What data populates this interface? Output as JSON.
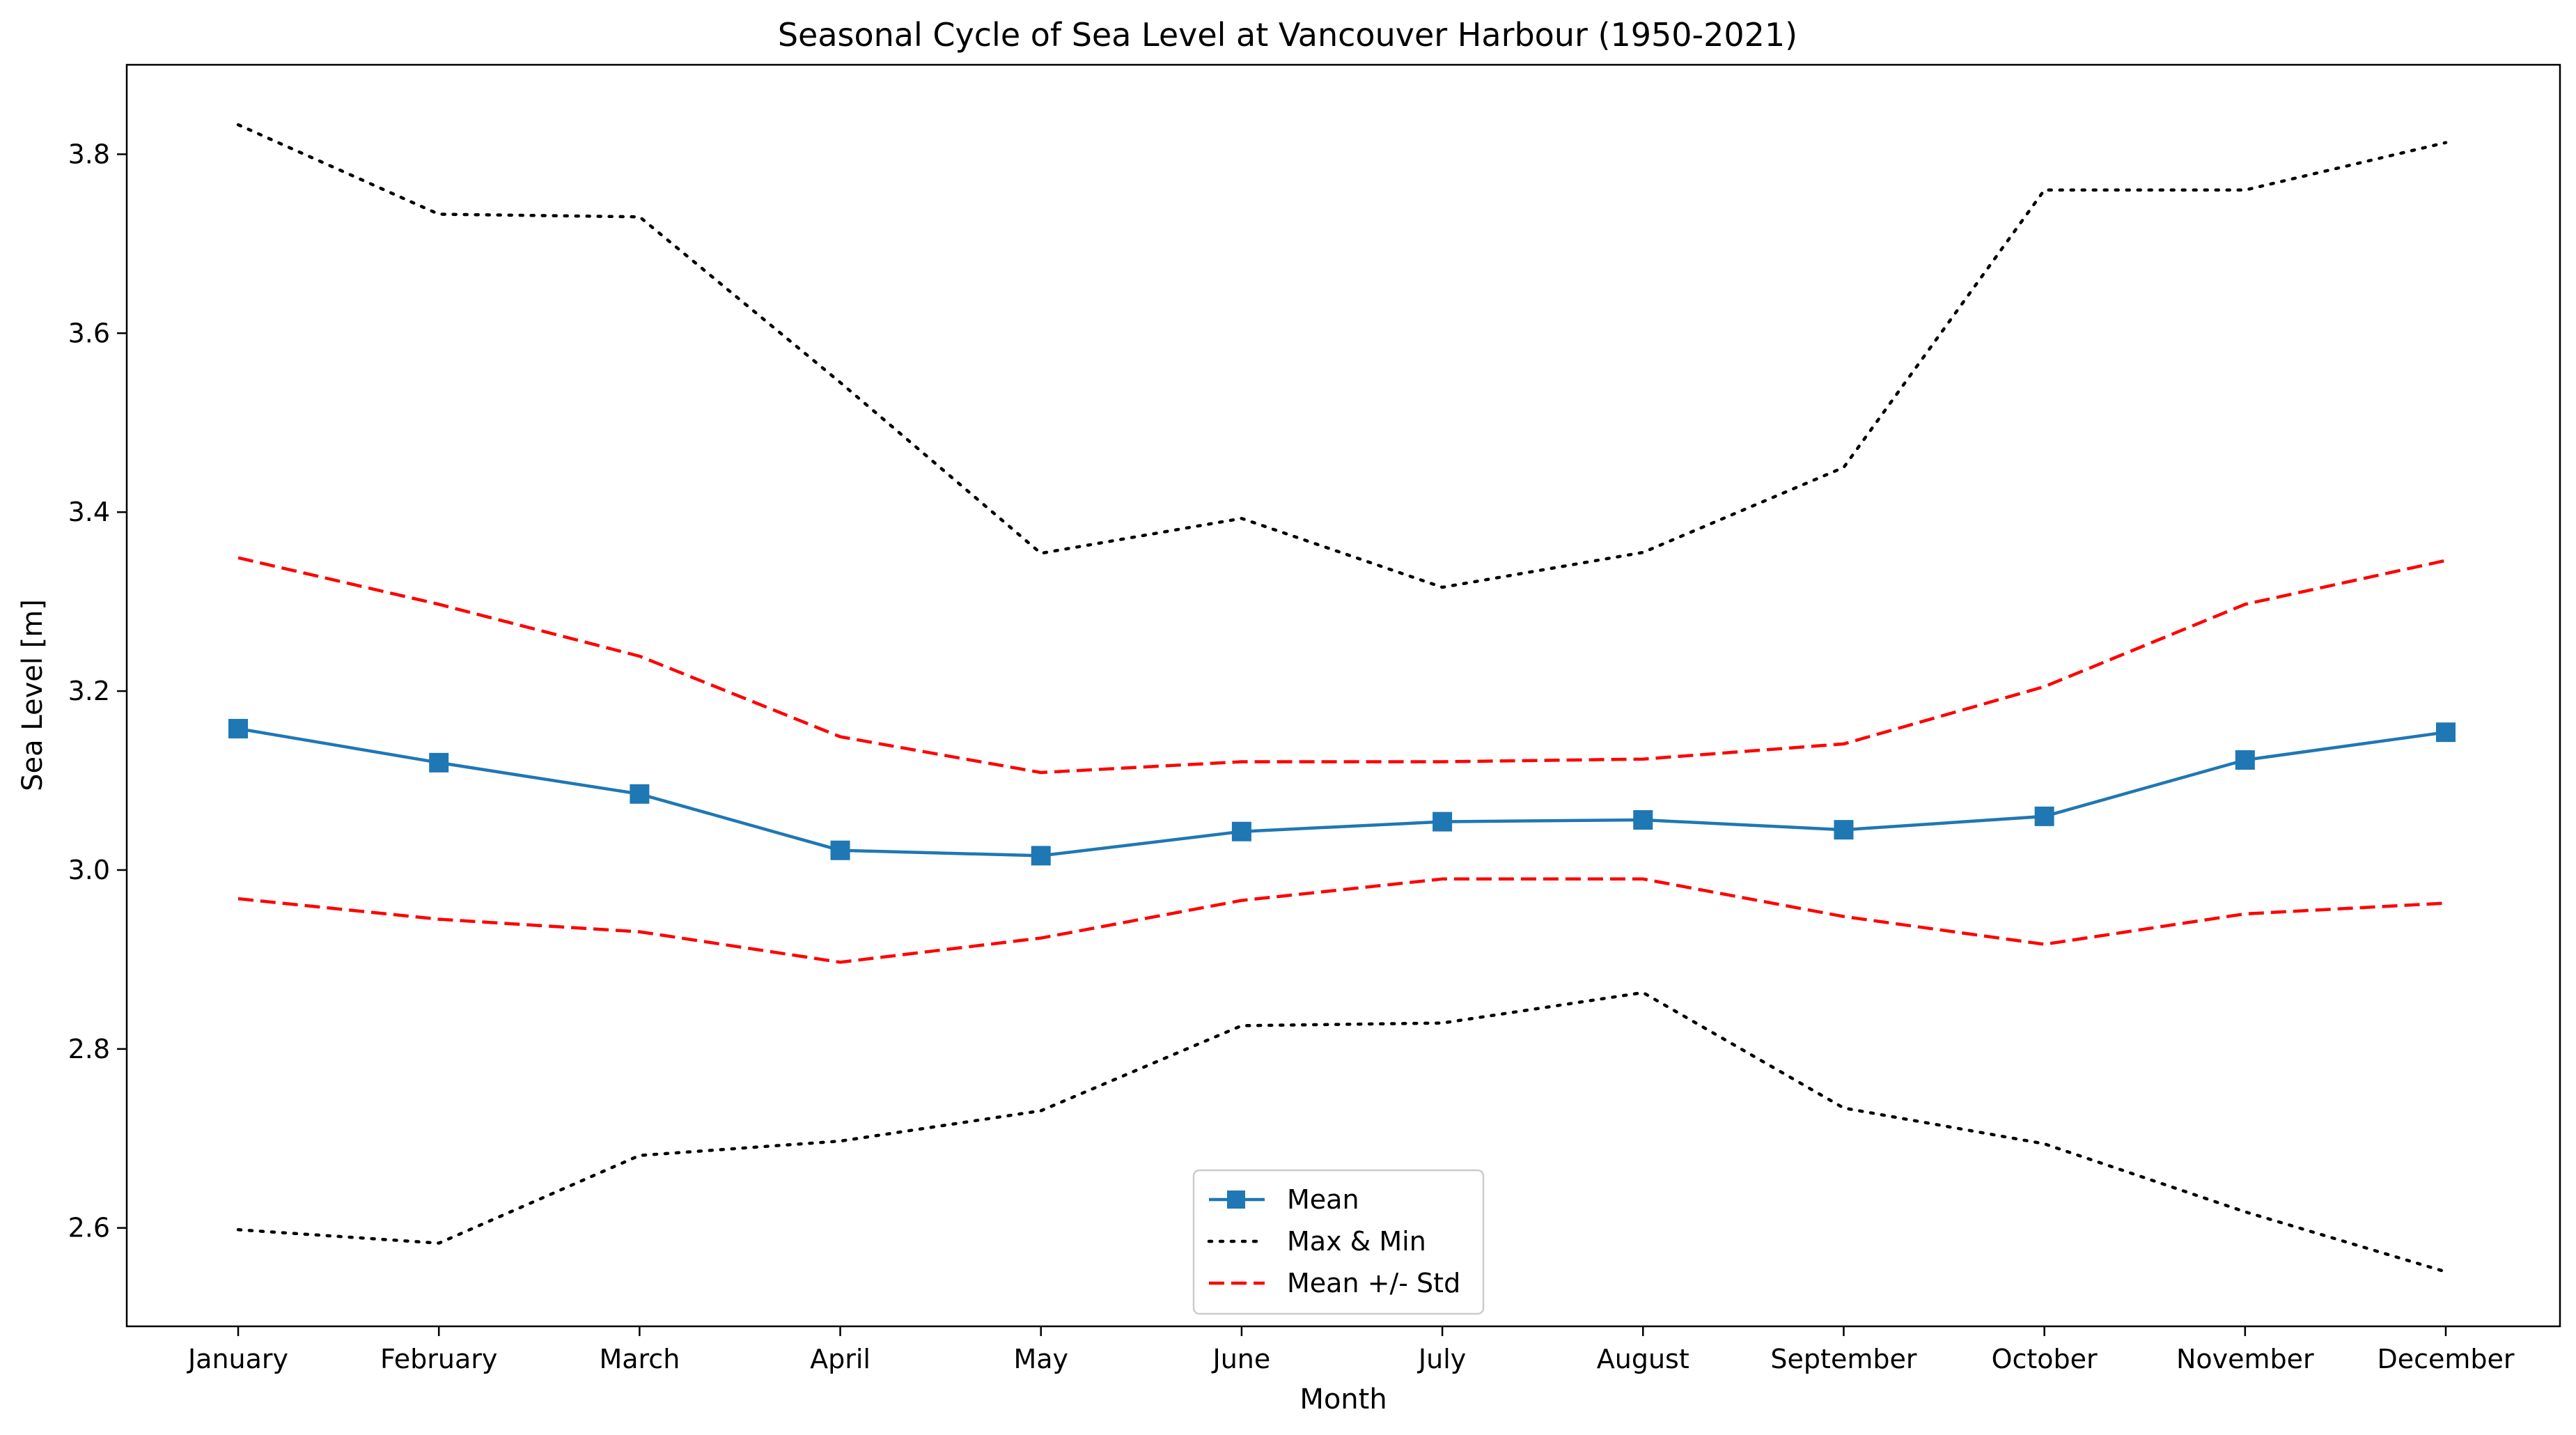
{
  "chart_data": {
    "type": "line",
    "title": "Seasonal Cycle of Sea Level at Vancouver Harbour (1950-2021)",
    "xlabel": "Month",
    "ylabel": "Sea Level [m]",
    "ylim": [
      2.49,
      3.9
    ],
    "yticks": [
      "2.6",
      "2.8",
      "3.0",
      "3.2",
      "3.4",
      "3.6",
      "3.8"
    ],
    "grid": false,
    "legend_position": "bottom-center",
    "categories": [
      "January",
      "February",
      "March",
      "April",
      "May",
      "June",
      "July",
      "August",
      "September",
      "October",
      "November",
      "December"
    ],
    "series": [
      {
        "name": "Mean",
        "legend_label": "Mean",
        "color": "#1f77b4",
        "style": "solid",
        "marker": "square",
        "values": [
          3.158,
          3.12,
          3.085,
          3.022,
          3.016,
          3.043,
          3.054,
          3.056,
          3.045,
          3.06,
          3.123,
          3.154
        ]
      },
      {
        "name": "Max",
        "legend_label": "Max & Min",
        "color": "#000000",
        "style": "dotted",
        "marker": "none",
        "values": [
          3.833,
          3.733,
          3.73,
          3.545,
          3.354,
          3.393,
          3.316,
          3.355,
          3.45,
          3.76,
          3.76,
          3.813
        ]
      },
      {
        "name": "Min",
        "legend_label": "",
        "color": "#000000",
        "style": "dotted",
        "marker": "none",
        "values": [
          2.598,
          2.583,
          2.681,
          2.697,
          2.731,
          2.826,
          2.829,
          2.863,
          2.734,
          2.694,
          2.618,
          2.551
        ]
      },
      {
        "name": "Mean + Std",
        "legend_label": "Mean +/- Std",
        "color": "#ff0000",
        "style": "dashed",
        "marker": "none",
        "values": [
          3.349,
          3.297,
          3.239,
          3.149,
          3.109,
          3.121,
          3.121,
          3.124,
          3.141,
          3.205,
          3.297,
          3.346
        ]
      },
      {
        "name": "Mean - Std",
        "legend_label": "",
        "color": "#ff0000",
        "style": "dashed",
        "marker": "none",
        "values": [
          2.968,
          2.945,
          2.931,
          2.897,
          2.924,
          2.966,
          2.99,
          2.99,
          2.948,
          2.917,
          2.951,
          2.963
        ]
      }
    ],
    "legend": [
      {
        "label": "Mean",
        "color": "#1f77b4",
        "style": "solid",
        "marker": "square"
      },
      {
        "label": "Max & Min",
        "color": "#000000",
        "style": "dotted",
        "marker": "none"
      },
      {
        "label": "Mean +/- Std",
        "color": "#ff0000",
        "style": "dashed",
        "marker": "none"
      }
    ]
  }
}
